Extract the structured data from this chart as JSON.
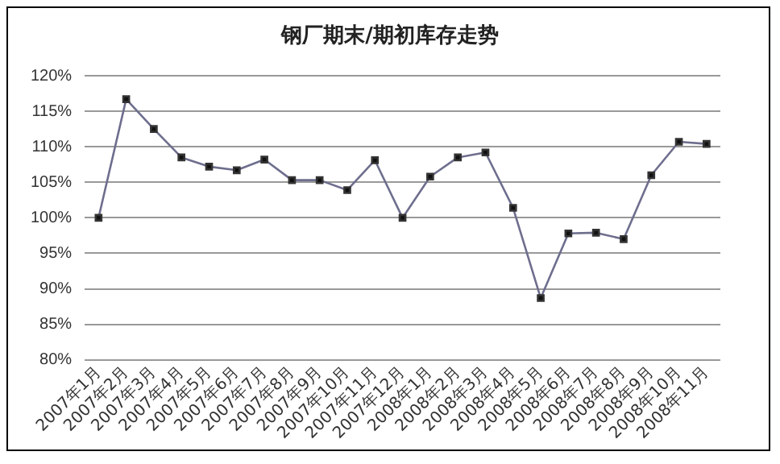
{
  "chart_data": {
    "type": "line",
    "title": "钢厂期末/期初库存走势",
    "categories": [
      "2007年1月",
      "2007年2月",
      "2007年3月",
      "2007年4月",
      "2007年5月",
      "2007年6月",
      "2007年7月",
      "2007年8月",
      "2007年9月",
      "2007年10月",
      "2007年11月",
      "2007年12月",
      "2008年1月",
      "2008年2月",
      "2008年3月",
      "2008年4月",
      "2008年5月",
      "2008年6月",
      "2008年7月",
      "2008年8月",
      "2008年9月",
      "2008年10月",
      "2008年11月"
    ],
    "series": [
      {
        "color": "#6e6e8e",
        "values": [
          100,
          116.7,
          112.5,
          108.5,
          107.2,
          106.7,
          108.2,
          105.3,
          105.3,
          103.9,
          108.1,
          100,
          105.8,
          108.5,
          109.2,
          101.4,
          88.7,
          97.8,
          97.9,
          97.0,
          106,
          110.7,
          110.4
        ]
      }
    ],
    "ylim": [
      80,
      120
    ],
    "yticks": [
      {
        "value": 80,
        "label": "80%"
      },
      {
        "value": 85,
        "label": "85%"
      },
      {
        "value": 90,
        "label": "90%"
      },
      {
        "value": 95,
        "label": "95%"
      },
      {
        "value": 100,
        "label": "100%"
      },
      {
        "value": 105,
        "label": "105%"
      },
      {
        "value": 110,
        "label": "110%"
      },
      {
        "value": 115,
        "label": "115%"
      },
      {
        "value": 120,
        "label": "120%"
      }
    ],
    "grid": "y",
    "legend": false,
    "marker": "square",
    "line_style": "solid"
  }
}
